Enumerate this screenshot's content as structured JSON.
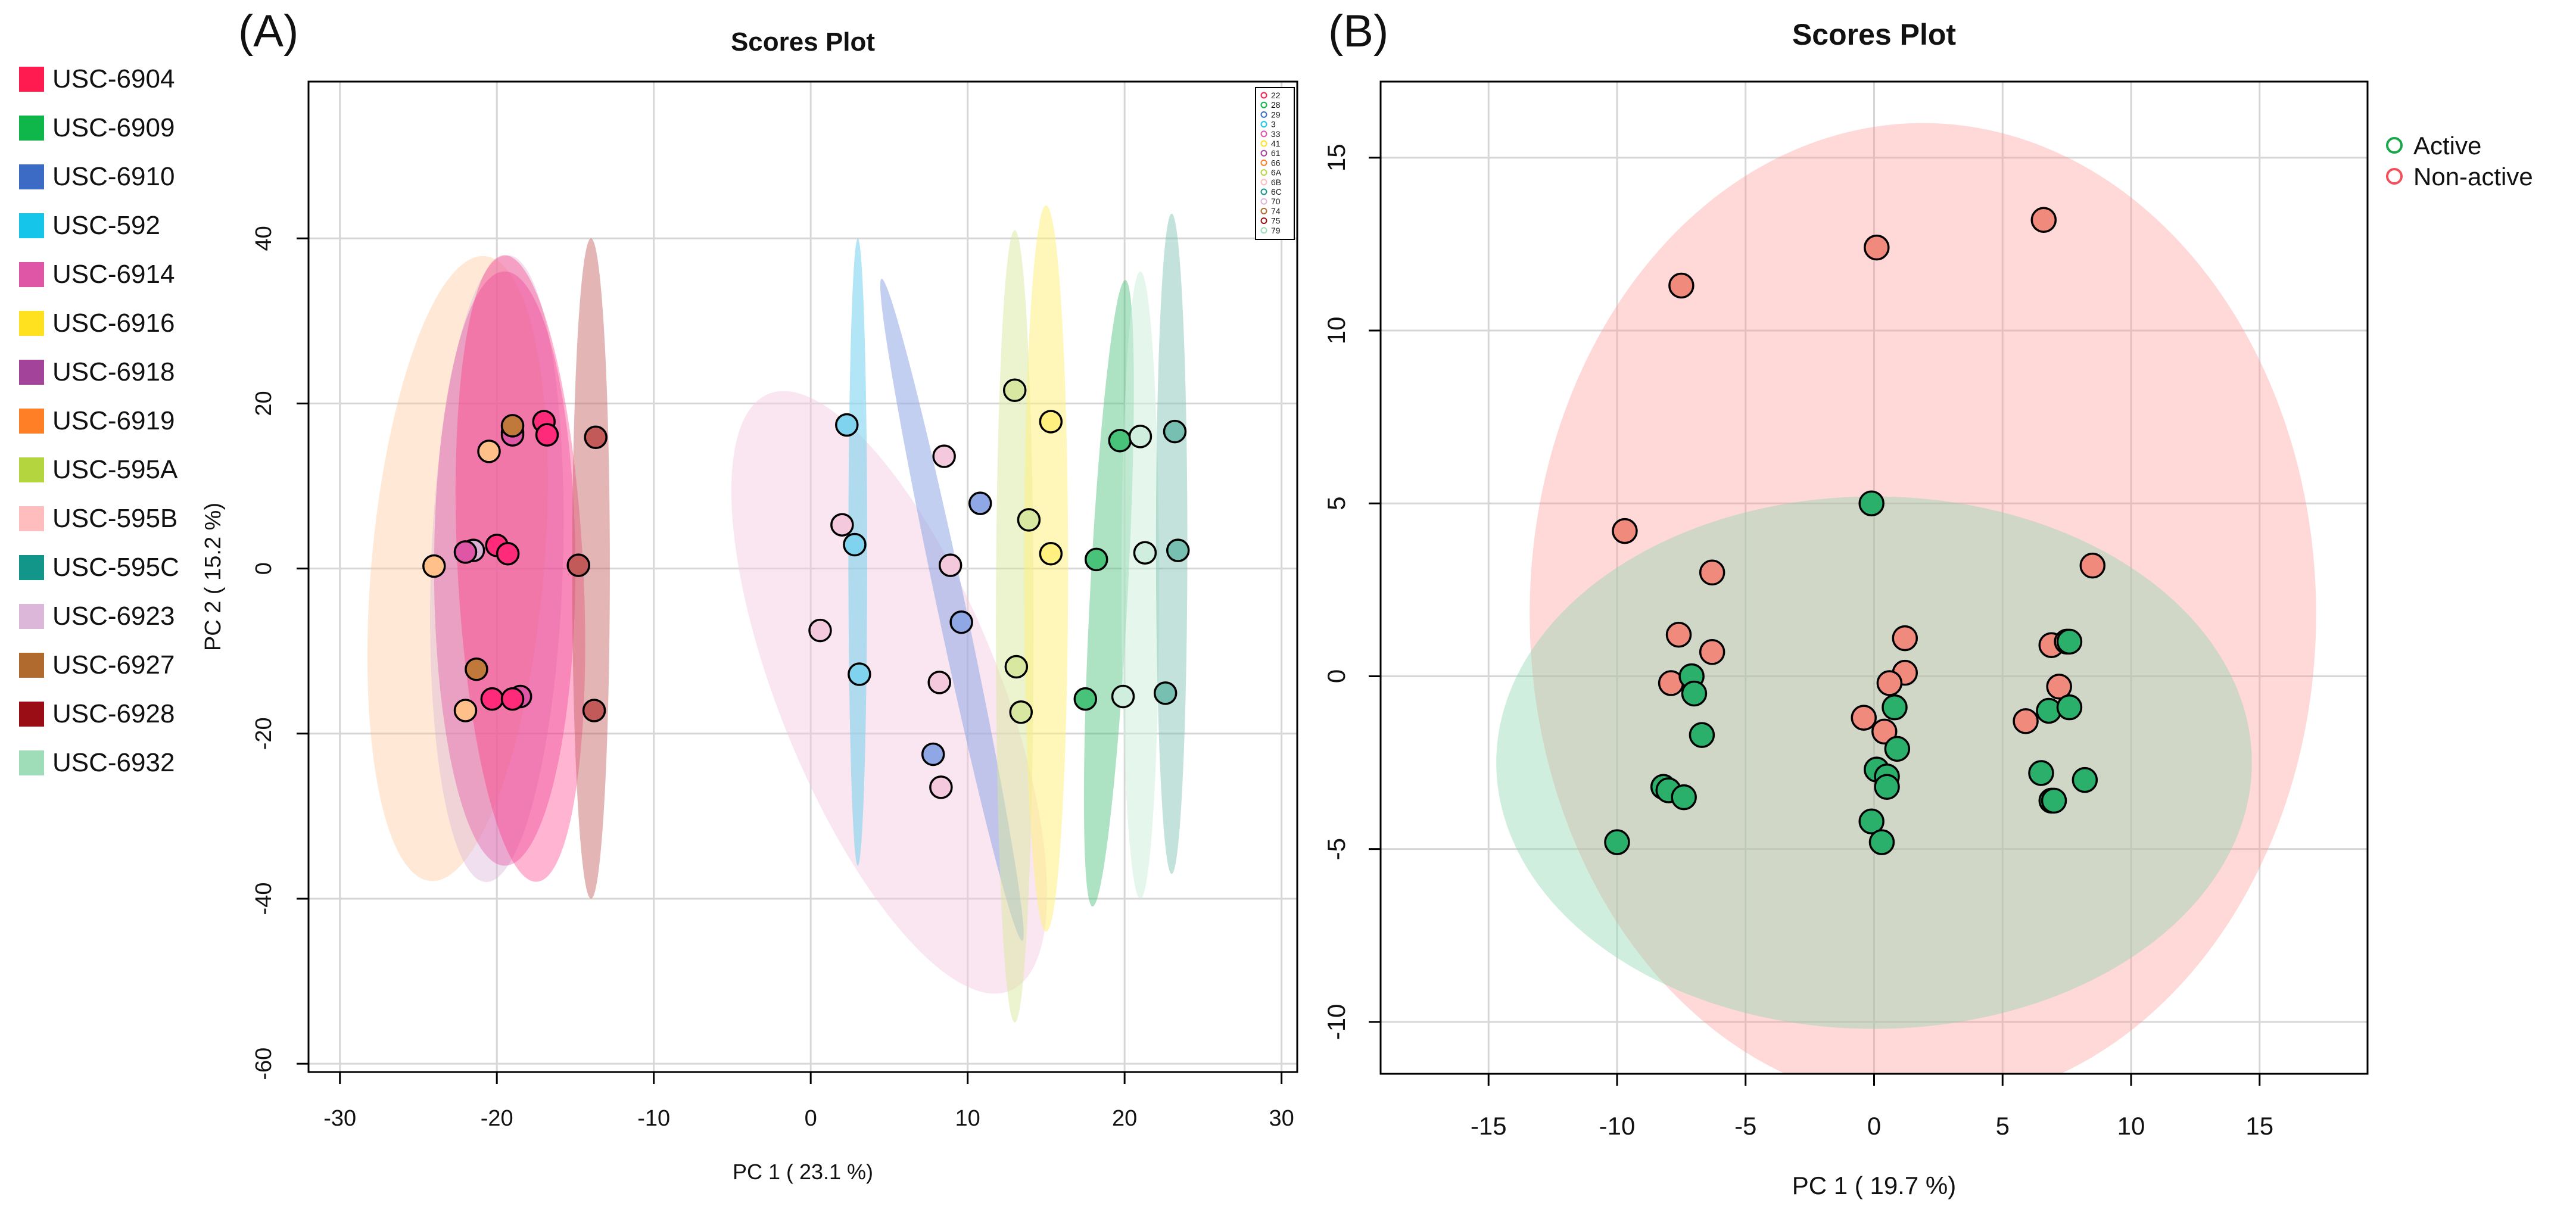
{
  "figure": {
    "legend_left": [
      {
        "label": "USC-6904",
        "color": "#ff1a4f"
      },
      {
        "label": "USC-6909",
        "color": "#0fb74b"
      },
      {
        "label": "USC-6910",
        "color": "#3b6bc4"
      },
      {
        "label": "USC-592",
        "color": "#16c6ea"
      },
      {
        "label": "USC-6914",
        "color": "#e056a6"
      },
      {
        "label": "USC-6916",
        "color": "#ffe11f"
      },
      {
        "label": "USC-6918",
        "color": "#a3449a"
      },
      {
        "label": "USC-6919",
        "color": "#ff7f27"
      },
      {
        "label": "USC-595A",
        "color": "#b5d53f"
      },
      {
        "label": "USC-595B",
        "color": "#ffbdbd"
      },
      {
        "label": "USC-595C",
        "color": "#12968a"
      },
      {
        "label": "USC-6923",
        "color": "#ddb7d9"
      },
      {
        "label": "USC-6927",
        "color": "#b06a2d"
      },
      {
        "label": "USC-6928",
        "color": "#9b0d15"
      },
      {
        "label": "USC-6932",
        "color": "#9fdcb8"
      }
    ]
  },
  "chart_data": [
    {
      "panel_label": "(A)",
      "type": "scatter",
      "title": "Scores Plot",
      "xlabel": "PC 1 ( 23.1 %)",
      "ylabel": "PC 2 ( 15.2 %)",
      "xlim": [
        -32,
        31
      ],
      "ylim": [
        -61,
        59
      ],
      "xticks": [
        -30,
        -20,
        -10,
        0,
        10,
        20,
        30
      ],
      "yticks": [
        -60,
        -40,
        -20,
        0,
        20,
        40
      ],
      "grid": true,
      "inner_legend": [
        "22",
        "28",
        "29",
        "3",
        "33",
        "41",
        "61",
        "66",
        "6A",
        "6B",
        "6C",
        "70",
        "74",
        "75",
        "79"
      ],
      "groups": [
        {
          "name": "6919",
          "color": "#ffc08a",
          "points": [
            [
              -24,
              0.3
            ],
            [
              -20.5,
              14.2
            ],
            [
              -22,
              -17.2
            ]
          ],
          "ellipse": {
            "cx": -22.5,
            "cy": 0,
            "rx": 5.5,
            "ry": 38,
            "angle": 5,
            "opacity": 0.35
          }
        },
        {
          "name": "6923",
          "color": "#d9b2d6",
          "points": [
            [
              -21.5,
              2.2
            ],
            [
              -19,
              16.5
            ]
          ],
          "ellipse": {
            "cx": -20,
            "cy": 0,
            "rx": 4.2,
            "ry": 38,
            "angle": 2,
            "opacity": 0.4
          }
        },
        {
          "name": "6914",
          "color": "#e056a6",
          "points": [
            [
              -22,
              2
            ],
            [
              -19,
              16.2
            ],
            [
              -18.5,
              -15.5
            ]
          ],
          "ellipse": {
            "cx": -19.5,
            "cy": 0,
            "rx": 4.5,
            "ry": 36,
            "angle": 0,
            "opacity": 0.4
          }
        },
        {
          "name": "6904",
          "color": "#ff2b7a",
          "points": [
            [
              -20,
              2.8
            ],
            [
              -19.3,
              1.8
            ],
            [
              -20.3,
              -15.8
            ],
            [
              -17,
              17.8
            ],
            [
              -16.8,
              16.2
            ],
            [
              -19,
              -15.8
            ]
          ],
          "ellipse": {
            "cx": -18.5,
            "cy": 0,
            "rx": 4,
            "ry": 38,
            "angle": -3,
            "opacity": 0.35
          }
        },
        {
          "name": "6927",
          "color": "#c0793a",
          "points": [
            [
              -21.3,
              -12.2
            ],
            [
              -19,
              17.3
            ]
          ],
          "ellipse": null
        },
        {
          "name": "6928",
          "color": "#c25a5a",
          "points": [
            [
              -14.8,
              0.4
            ],
            [
              -13.7,
              15.9
            ],
            [
              -13.8,
              -17.2
            ]
          ],
          "ellipse": {
            "cx": -14,
            "cy": 0,
            "rx": 1.2,
            "ry": 40,
            "angle": 0,
            "opacity": 0.45
          }
        },
        {
          "name": "6923b",
          "color": "#f4c8dd",
          "points": [
            [
              2,
              5.3
            ],
            [
              0.6,
              -7.5
            ],
            [
              8.2,
              -13.8
            ],
            [
              8.9,
              0.4
            ],
            [
              8.5,
              13.6
            ],
            [
              8.3,
              -26.5
            ]
          ],
          "ellipse": {
            "cx": 5,
            "cy": -15,
            "rx": 7,
            "ry": 39,
            "angle": -22,
            "opacity": 0.45
          }
        },
        {
          "name": "592",
          "color": "#7fd3ee",
          "points": [
            [
              2.3,
              17.4
            ],
            [
              2.8,
              2.9
            ],
            [
              3.1,
              -12.8
            ]
          ],
          "ellipse": {
            "cx": 3,
            "cy": 2,
            "rx": 0.6,
            "ry": 38,
            "angle": 0,
            "opacity": 0.6
          }
        },
        {
          "name": "6910",
          "color": "#8fa7e5",
          "points": [
            [
              10.8,
              7.9
            ],
            [
              9.6,
              -6.5
            ],
            [
              7.8,
              -22.5
            ]
          ],
          "ellipse": {
            "cx": 9,
            "cy": -5,
            "rx": 0.9,
            "ry": 41,
            "angle": -12,
            "opacity": 0.55
          }
        },
        {
          "name": "595A",
          "color": "#d8e8a0",
          "points": [
            [
              13,
              21.6
            ],
            [
              13.9,
              5.9
            ],
            [
              13.1,
              -11.9
            ],
            [
              13.4,
              -17.4
            ]
          ],
          "ellipse": {
            "cx": 13,
            "cy": -7,
            "rx": 1.2,
            "ry": 48,
            "angle": 0,
            "opacity": 0.5
          }
        },
        {
          "name": "6916",
          "color": "#fff07f",
          "points": [
            [
              15.3,
              17.8
            ],
            [
              15.3,
              1.8
            ]
          ],
          "ellipse": {
            "cx": 15,
            "cy": 0,
            "rx": 1.4,
            "ry": 44,
            "angle": 0,
            "opacity": 0.55
          }
        },
        {
          "name": "6909",
          "color": "#49c27a",
          "points": [
            [
              19.7,
              15.5
            ],
            [
              18.2,
              1.1
            ],
            [
              17.5,
              -15.8
            ]
          ],
          "ellipse": {
            "cx": 19,
            "cy": -3,
            "rx": 1.2,
            "ry": 38,
            "angle": 3,
            "opacity": 0.45
          }
        },
        {
          "name": "6932",
          "color": "#cfeede",
          "points": [
            [
              21,
              16
            ],
            [
              21.3,
              1.9
            ],
            [
              19.9,
              -15.5
            ]
          ],
          "ellipse": {
            "cx": 21,
            "cy": -2,
            "rx": 1.2,
            "ry": 38,
            "angle": 0,
            "opacity": 0.55
          }
        },
        {
          "name": "595C",
          "color": "#77bfb0",
          "points": [
            [
              23.2,
              16.6
            ],
            [
              23.4,
              2.2
            ],
            [
              22.6,
              -15.1
            ]
          ],
          "ellipse": {
            "cx": 23,
            "cy": 3,
            "rx": 1,
            "ry": 40,
            "angle": 0,
            "opacity": 0.45
          }
        }
      ]
    },
    {
      "panel_label": "(B)",
      "type": "scatter",
      "title": "Scores Plot",
      "xlabel": "PC 1 ( 19.7 %)",
      "ylabel": "",
      "xlim": [
        -19.2,
        19.2
      ],
      "ylim": [
        -11.5,
        17.2
      ],
      "xticks": [
        -15,
        -10,
        -5,
        0,
        5,
        10,
        15
      ],
      "yticks": [
        -10,
        -5,
        0,
        5,
        10,
        15
      ],
      "grid": true,
      "legend": [
        {
          "label": "Active",
          "color": "#1aa64a"
        },
        {
          "label": "Non-active",
          "color": "#f0505a"
        }
      ],
      "groups": [
        {
          "name": "Non-active",
          "color": "#f08a7c",
          "ellipse": {
            "cx": 1.9,
            "cy": 1.8,
            "rx": 15.3,
            "ry": 14.2,
            "angle": 0,
            "color": "#ff9999",
            "opacity": 0.38
          },
          "points": [
            [
              6.6,
              13.2
            ],
            [
              0.1,
              12.4
            ],
            [
              -7.5,
              11.3
            ],
            [
              -9.7,
              4.2
            ],
            [
              -6.3,
              3
            ],
            [
              8.5,
              3.2
            ],
            [
              -7.6,
              1.2
            ],
            [
              -6.3,
              0.7
            ],
            [
              -7.9,
              -0.2
            ],
            [
              1.2,
              1.1
            ],
            [
              1.2,
              0.1
            ],
            [
              0.6,
              -0.2
            ],
            [
              6.9,
              0.9
            ],
            [
              7.5,
              1.0
            ],
            [
              7.2,
              -0.3
            ],
            [
              5.9,
              -1.3
            ],
            [
              -0.4,
              -1.2
            ],
            [
              0.4,
              -1.6
            ]
          ]
        },
        {
          "name": "Active",
          "color": "#2ab06a",
          "ellipse": {
            "cx": 0,
            "cy": -2.5,
            "rx": 14.7,
            "ry": 7.7,
            "angle": 0,
            "color": "#8ed6b1",
            "opacity": 0.42
          },
          "points": [
            [
              -0.1,
              5
            ],
            [
              -7.1,
              0
            ],
            [
              -7,
              -0.5
            ],
            [
              -6.7,
              -1.7
            ],
            [
              -8.2,
              -3.2
            ],
            [
              -8,
              -3.3
            ],
            [
              -7.4,
              -3.5
            ],
            [
              -10,
              -4.8
            ],
            [
              0.8,
              -0.9
            ],
            [
              0.9,
              -2.1
            ],
            [
              0.1,
              -2.7
            ],
            [
              0.5,
              -2.9
            ],
            [
              0.5,
              -3.2
            ],
            [
              -0.1,
              -4.2
            ],
            [
              0.3,
              -4.8
            ],
            [
              6.8,
              -1
            ],
            [
              7.6,
              -0.9
            ],
            [
              7.6,
              1.0
            ],
            [
              6.5,
              -2.8
            ],
            [
              8.2,
              -3
            ],
            [
              6.9,
              -3.6
            ],
            [
              7,
              -3.6
            ]
          ]
        }
      ]
    }
  ]
}
